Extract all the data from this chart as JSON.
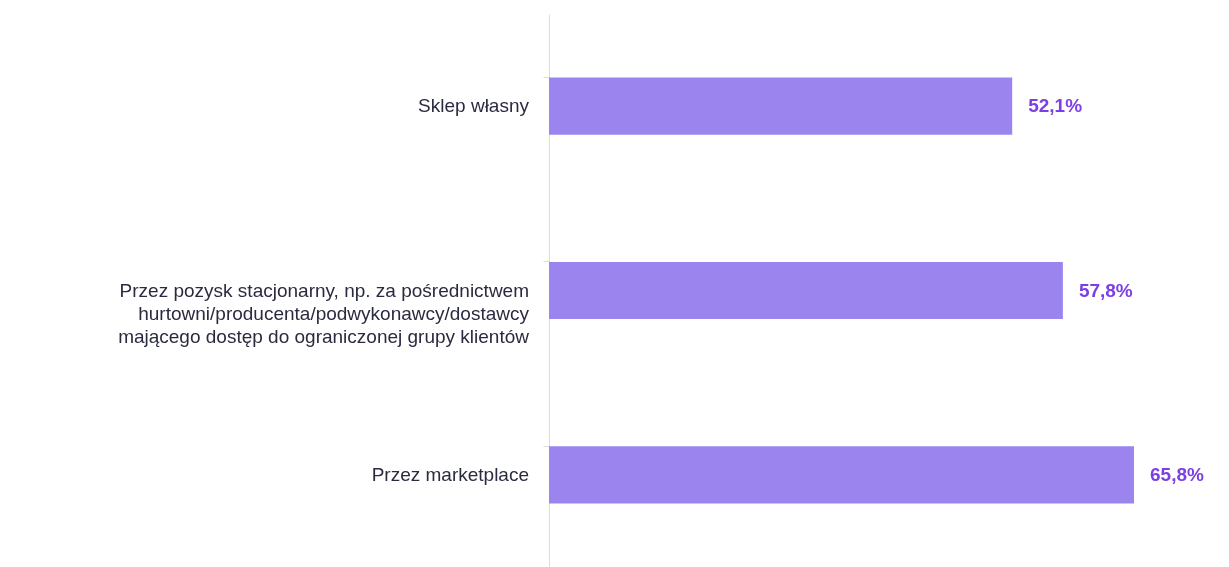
{
  "chart_data": {
    "type": "bar",
    "orientation": "horizontal",
    "categories": [
      "Sklep własny",
      "Przez pozysk stacjonarny, np. za pośrednictwem hurtowni/producenta/podwykonawcy/dostawcy mającego dostęp do ograniczonej grupy klientów",
      "Przez marketplace"
    ],
    "values": [
      52.1,
      57.8,
      65.8
    ],
    "color": "#9b84ee",
    "value_labels": [
      "52,1%",
      "57,8%",
      "65,8%"
    ],
    "grid": false
  }
}
